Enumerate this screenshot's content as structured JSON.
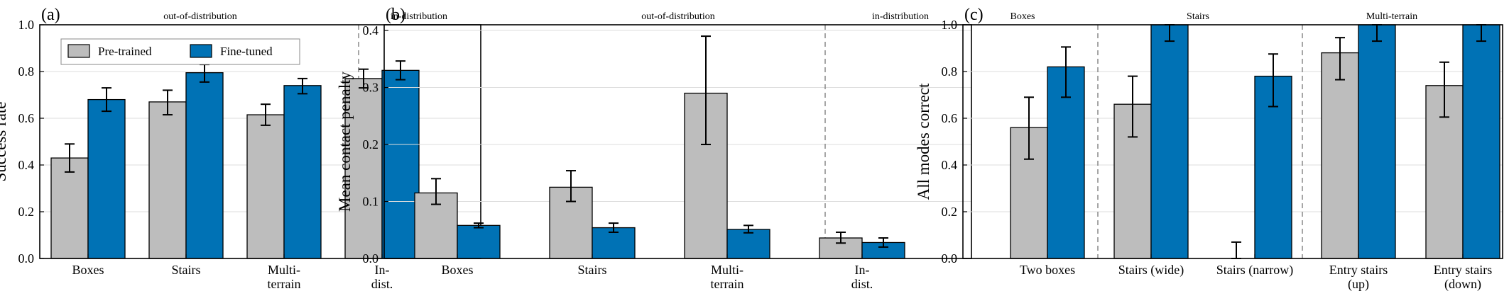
{
  "legend": {
    "pretrained": "Pre-trained",
    "finetuned": "Fine-tuned"
  },
  "colors": {
    "pretrained": "#bdbdbd",
    "finetuned": "#0072b5",
    "edge": "#000000",
    "grid": "#dddddd",
    "divider": "#888888"
  },
  "chart_data": [
    {
      "type": "bar",
      "panel_label": "(a)",
      "ylabel": "Success rate",
      "ylim": [
        0,
        1.0
      ],
      "yticks": [
        "0.0",
        "0.2",
        "0.4",
        "0.6",
        "0.8",
        "1.0"
      ],
      "grid": true,
      "legend_position": "top-left",
      "categories": [
        "Boxes",
        "Stairs",
        "Multi-\nterrain",
        "In-\ndist."
      ],
      "section_labels": [
        "out-of-distribution",
        "in-distribution"
      ],
      "series": [
        {
          "name": "Pre-trained",
          "values": [
            0.43,
            0.67,
            0.615,
            0.77
          ],
          "err_low": [
            0.37,
            0.615,
            0.57,
            0.73
          ],
          "err_high": [
            0.49,
            0.72,
            0.66,
            0.81
          ]
        },
        {
          "name": "Fine-tuned",
          "values": [
            0.68,
            0.795,
            0.74,
            0.805
          ],
          "err_low": [
            0.63,
            0.755,
            0.705,
            0.765
          ],
          "err_high": [
            0.73,
            0.83,
            0.77,
            0.845
          ]
        }
      ]
    },
    {
      "type": "bar",
      "panel_label": "(b)",
      "ylabel": "Mean contact penalty",
      "ylim": [
        0,
        0.41
      ],
      "yticks": [
        "0.0",
        "0.1",
        "0.2",
        "0.3",
        "0.4"
      ],
      "grid": true,
      "categories": [
        "Boxes",
        "Stairs",
        "Multi-\nterrain",
        "In-\ndist."
      ],
      "section_labels": [
        "out-of-distribution",
        "in-distribution"
      ],
      "series": [
        {
          "name": "Pre-trained",
          "values": [
            0.115,
            0.125,
            0.29,
            0.036
          ],
          "err_low": [
            0.095,
            0.1,
            0.2,
            0.027
          ],
          "err_high": [
            0.14,
            0.154,
            0.39,
            0.046
          ]
        },
        {
          "name": "Fine-tuned",
          "values": [
            0.058,
            0.054,
            0.051,
            0.028
          ],
          "err_low": [
            0.054,
            0.046,
            0.045,
            0.02
          ],
          "err_high": [
            0.062,
            0.062,
            0.058,
            0.036
          ]
        }
      ]
    },
    {
      "type": "bar",
      "panel_label": "(c)",
      "ylabel": "All modes correct",
      "ylim": [
        0,
        1.0
      ],
      "yticks": [
        "0.0",
        "0.2",
        "0.4",
        "0.6",
        "0.8",
        "1.0"
      ],
      "grid": true,
      "categories": [
        "Two boxes",
        "Stairs (wide)",
        "Stairs (narrow)",
        "Entry stairs\n(up)",
        "Entry stairs\n(down)"
      ],
      "section_labels": [
        "Boxes",
        "Stairs",
        "Multi-terrain"
      ],
      "series": [
        {
          "name": "Pre-trained",
          "values": [
            0.56,
            0.66,
            0.0,
            0.88,
            0.74
          ],
          "err_low": [
            0.425,
            0.52,
            0.0,
            0.765,
            0.605
          ],
          "err_high": [
            0.69,
            0.78,
            0.07,
            0.945,
            0.84
          ]
        },
        {
          "name": "Fine-tuned",
          "values": [
            0.82,
            1.0,
            0.78,
            1.0,
            1.0
          ],
          "err_low": [
            0.69,
            0.93,
            0.65,
            0.93,
            0.93
          ],
          "err_high": [
            0.905,
            1.0,
            0.875,
            1.0,
            1.0
          ]
        }
      ]
    }
  ]
}
